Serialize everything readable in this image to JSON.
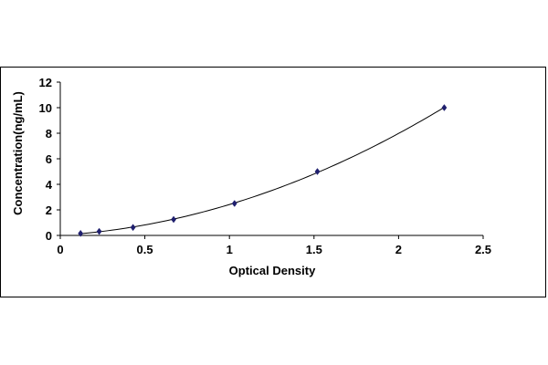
{
  "chart_data": {
    "type": "scatter",
    "title": "",
    "xlabel": "Optical Density",
    "ylabel": "Concentration(ng/mL)",
    "xlim": [
      0,
      2.5
    ],
    "ylim": [
      0,
      12
    ],
    "x_ticks": [
      "0",
      "0.5",
      "1",
      "1.5",
      "2",
      "2.5"
    ],
    "y_ticks": [
      "0",
      "2",
      "4",
      "6",
      "8",
      "10",
      "12"
    ],
    "grid": false,
    "legend": "none",
    "series": [
      {
        "x": [
          0.12,
          0.23,
          0.43,
          0.67,
          1.03,
          1.52,
          2.27
        ],
        "y": [
          0.156,
          0.313,
          0.625,
          1.25,
          2.5,
          5,
          10
        ],
        "marker": "diamond",
        "color": "#1f1f6e",
        "trendline": "polynomial"
      }
    ]
  }
}
